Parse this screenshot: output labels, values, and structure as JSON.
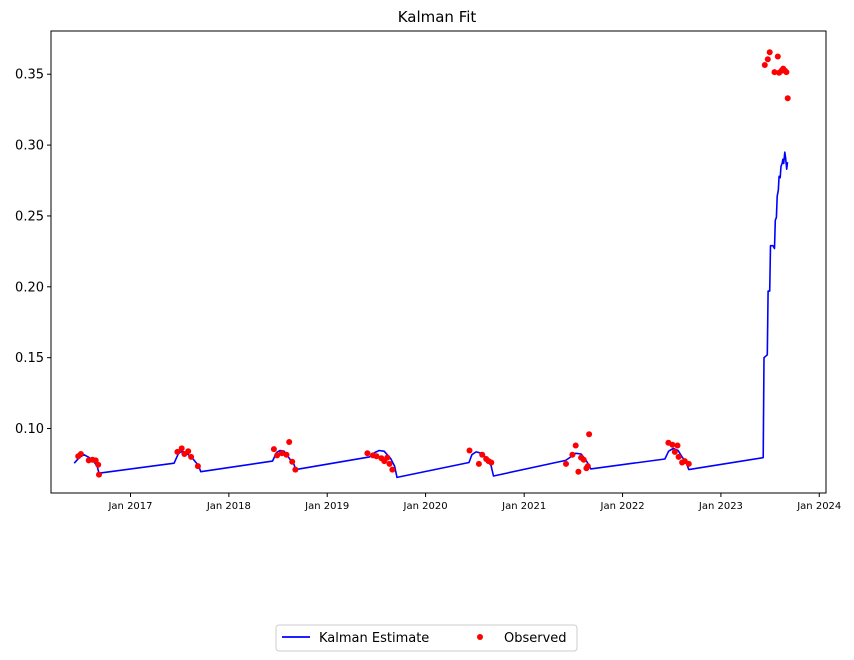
{
  "chart_data": {
    "type": "line",
    "title": "Kalman Fit",
    "xlabel": "",
    "ylabel": "",
    "xlim": [
      "2016-03-12",
      "2024-01-26"
    ],
    "ylim": [
      0.0545,
      0.3805
    ],
    "yticks": [
      {
        "value": 0.1,
        "label": "0.10"
      },
      {
        "value": 0.15,
        "label": "0.15"
      },
      {
        "value": 0.2,
        "label": "0.20"
      },
      {
        "value": 0.25,
        "label": "0.25"
      },
      {
        "value": 0.3,
        "label": "0.30"
      },
      {
        "value": 0.35,
        "label": "0.35"
      }
    ],
    "xticks": [
      {
        "date": "2017-01-01",
        "label": "Jan 2017"
      },
      {
        "date": "2018-01-01",
        "label": "Jan 2018"
      },
      {
        "date": "2019-01-01",
        "label": "Jan 2019"
      },
      {
        "date": "2020-01-01",
        "label": "Jan 2020"
      },
      {
        "date": "2021-01-01",
        "label": "Jan 2021"
      },
      {
        "date": "2022-01-01",
        "label": "Jan 2022"
      },
      {
        "date": "2023-01-01",
        "label": "Jan 2023"
      },
      {
        "date": "2024-01-01",
        "label": "Jan 2024"
      }
    ],
    "grid": false,
    "legend": {
      "placement": "bottom-center",
      "entries": [
        "Kalman Estimate",
        "Observed"
      ]
    },
    "series": [
      {
        "name": "Kalman Estimate",
        "kind": "line",
        "color": "#0000ff",
        "points": [
          [
            "2016-06-06",
            0.0755
          ],
          [
            "2016-06-25",
            0.0795
          ],
          [
            "2016-07-12",
            0.0815
          ],
          [
            "2016-08-01",
            0.0795
          ],
          [
            "2016-08-15",
            0.0775
          ],
          [
            "2016-08-30",
            0.0735
          ],
          [
            "2016-09-06",
            0.0685
          ],
          [
            "2017-06-12",
            0.0755
          ],
          [
            "2017-06-28",
            0.0825
          ],
          [
            "2017-07-13",
            0.084
          ],
          [
            "2017-07-28",
            0.0825
          ],
          [
            "2017-08-17",
            0.0795
          ],
          [
            "2017-09-10",
            0.074
          ],
          [
            "2017-09-19",
            0.0695
          ],
          [
            "2018-06-12",
            0.077
          ],
          [
            "2018-06-27",
            0.083
          ],
          [
            "2018-07-10",
            0.0845
          ],
          [
            "2018-07-25",
            0.084
          ],
          [
            "2018-08-15",
            0.0785
          ],
          [
            "2018-08-31",
            0.0745
          ],
          [
            "2018-09-06",
            0.071
          ],
          [
            "2019-06-07",
            0.08
          ],
          [
            "2019-06-26",
            0.083
          ],
          [
            "2019-07-13",
            0.0845
          ],
          [
            "2019-07-31",
            0.084
          ],
          [
            "2019-08-24",
            0.079
          ],
          [
            "2019-09-08",
            0.0735
          ],
          [
            "2019-09-17",
            0.0655
          ],
          [
            "2020-06-10",
            0.076
          ],
          [
            "2020-06-21",
            0.0815
          ],
          [
            "2020-07-06",
            0.0835
          ],
          [
            "2020-07-28",
            0.0825
          ],
          [
            "2020-08-15",
            0.079
          ],
          [
            "2020-08-31",
            0.074
          ],
          [
            "2020-09-09",
            0.0665
          ],
          [
            "2021-06-04",
            0.0775
          ],
          [
            "2021-06-23",
            0.08
          ],
          [
            "2021-07-11",
            0.0825
          ],
          [
            "2021-07-31",
            0.082
          ],
          [
            "2021-08-15",
            0.0785
          ],
          [
            "2021-08-25",
            0.0755
          ],
          [
            "2021-09-05",
            0.0715
          ],
          [
            "2022-06-07",
            0.0785
          ],
          [
            "2022-06-21",
            0.084
          ],
          [
            "2022-07-08",
            0.086
          ],
          [
            "2022-07-26",
            0.0845
          ],
          [
            "2022-08-10",
            0.08
          ],
          [
            "2022-08-26",
            0.0755
          ],
          [
            "2022-09-04",
            0.071
          ],
          [
            "2023-06-07",
            0.0795
          ],
          [
            "2023-06-10",
            0.15
          ],
          [
            "2023-06-22",
            0.152
          ],
          [
            "2023-06-25",
            0.197
          ],
          [
            "2023-07-01",
            0.197
          ],
          [
            "2023-07-04",
            0.229
          ],
          [
            "2023-07-13",
            0.229
          ],
          [
            "2023-07-19",
            0.227
          ],
          [
            "2023-07-22",
            0.247
          ],
          [
            "2023-07-26",
            0.249
          ],
          [
            "2023-07-29",
            0.264
          ],
          [
            "2023-08-02",
            0.268
          ],
          [
            "2023-08-05",
            0.278
          ],
          [
            "2023-08-09",
            0.277
          ],
          [
            "2023-08-12",
            0.285
          ],
          [
            "2023-08-16",
            0.287
          ],
          [
            "2023-08-19",
            0.29
          ],
          [
            "2023-08-22",
            0.287
          ],
          [
            "2023-08-26",
            0.295
          ],
          [
            "2023-08-29",
            0.291
          ],
          [
            "2023-09-02",
            0.283
          ],
          [
            "2023-09-05",
            0.288
          ]
        ]
      },
      {
        "name": "Observed",
        "kind": "scatter",
        "color": "#ff0000",
        "points": [
          [
            "2016-06-21",
            0.0805
          ],
          [
            "2016-07-01",
            0.082
          ],
          [
            "2016-07-30",
            0.0775
          ],
          [
            "2016-08-13",
            0.078
          ],
          [
            "2016-08-25",
            0.0775
          ],
          [
            "2016-09-03",
            0.0745
          ],
          [
            "2016-09-06",
            0.0675
          ],
          [
            "2017-06-24",
            0.0835
          ],
          [
            "2017-07-10",
            0.086
          ],
          [
            "2017-07-20",
            0.082
          ],
          [
            "2017-08-03",
            0.084
          ],
          [
            "2017-08-14",
            0.08
          ],
          [
            "2017-09-08",
            0.0735
          ],
          [
            "2018-06-17",
            0.0855
          ],
          [
            "2018-06-29",
            0.081
          ],
          [
            "2018-07-17",
            0.0825
          ],
          [
            "2018-08-03",
            0.0815
          ],
          [
            "2018-08-13",
            0.0905
          ],
          [
            "2018-08-24",
            0.0765
          ],
          [
            "2018-09-05",
            0.071
          ],
          [
            "2019-05-30",
            0.0825
          ],
          [
            "2019-06-20",
            0.081
          ],
          [
            "2019-07-03",
            0.0805
          ],
          [
            "2019-07-21",
            0.079
          ],
          [
            "2019-08-01",
            0.077
          ],
          [
            "2019-08-12",
            0.0795
          ],
          [
            "2019-08-20",
            0.075
          ],
          [
            "2019-08-31",
            0.071
          ],
          [
            "2020-06-12",
            0.0845
          ],
          [
            "2020-07-17",
            0.075
          ],
          [
            "2020-07-29",
            0.0815
          ],
          [
            "2020-08-13",
            0.0785
          ],
          [
            "2020-08-22",
            0.077
          ],
          [
            "2020-09-01",
            0.076
          ],
          [
            "2021-06-05",
            0.075
          ],
          [
            "2021-06-29",
            0.0815
          ],
          [
            "2021-07-11",
            0.088
          ],
          [
            "2021-07-21",
            0.0695
          ],
          [
            "2021-07-31",
            0.0795
          ],
          [
            "2021-08-10",
            0.078
          ],
          [
            "2021-08-20",
            0.072
          ],
          [
            "2021-08-25",
            0.0735
          ],
          [
            "2021-08-30",
            0.096
          ],
          [
            "2022-06-20",
            0.09
          ],
          [
            "2022-07-05",
            0.0885
          ],
          [
            "2022-07-14",
            0.0835
          ],
          [
            "2022-07-24",
            0.088
          ],
          [
            "2022-07-28",
            0.08
          ],
          [
            "2022-08-10",
            0.076
          ],
          [
            "2022-08-20",
            0.077
          ],
          [
            "2022-09-04",
            0.075
          ],
          [
            "2023-06-13",
            0.3565
          ],
          [
            "2023-06-24",
            0.3605
          ],
          [
            "2023-07-01",
            0.3655
          ],
          [
            "2023-07-19",
            0.3515
          ],
          [
            "2023-07-31",
            0.3625
          ],
          [
            "2023-08-05",
            0.351
          ],
          [
            "2023-08-14",
            0.3525
          ],
          [
            "2023-08-20",
            0.354
          ],
          [
            "2023-08-27",
            0.3525
          ],
          [
            "2023-09-01",
            0.3515
          ],
          [
            "2023-09-06",
            0.333
          ]
        ]
      }
    ]
  }
}
